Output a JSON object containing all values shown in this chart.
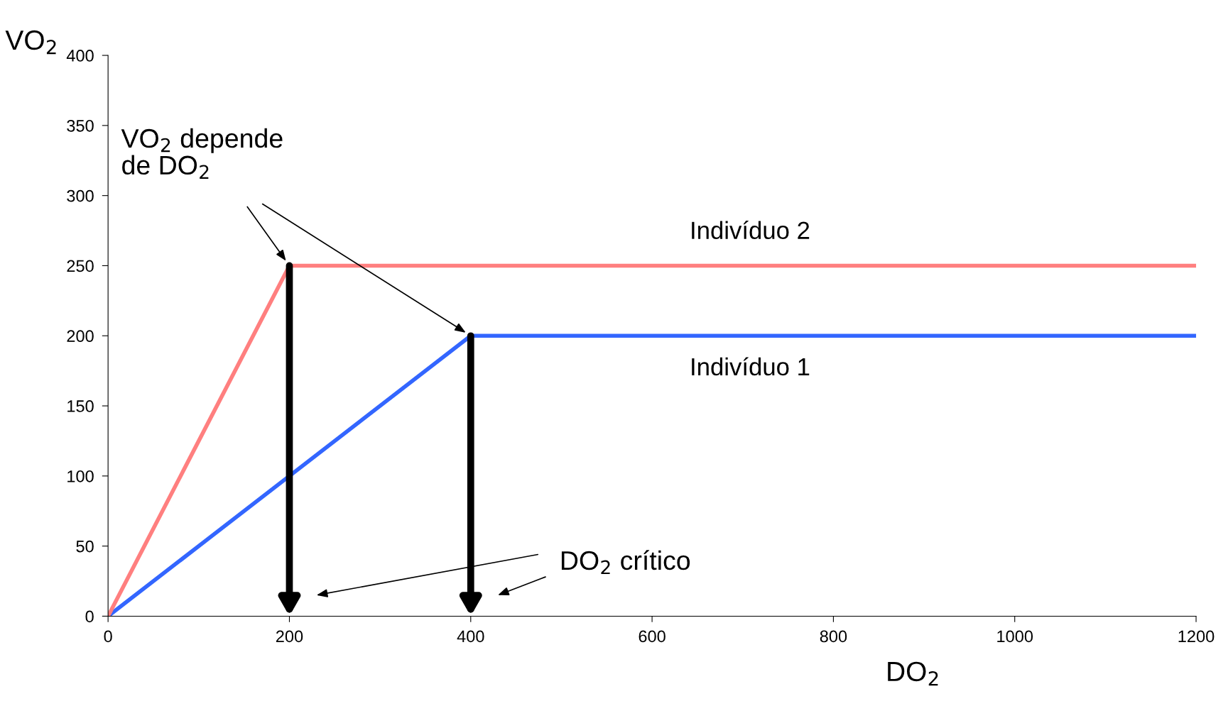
{
  "chart_data": {
    "type": "line",
    "xlabel": "DO$_{2}$",
    "ylabel": "VO$_{2}$",
    "series": [
      {
        "name": "Indivíduo 1",
        "color": "#3366ff",
        "x": [
          0,
          400,
          1200
        ],
        "values": [
          0,
          200,
          200
        ]
      },
      {
        "name": "Indivíduo 2",
        "color": "#ff7f7f",
        "x": [
          0,
          200,
          1200
        ],
        "values": [
          0,
          250,
          250
        ]
      }
    ],
    "xlim": [
      0,
      1200
    ],
    "xticks": [
      0,
      200,
      400,
      600,
      800,
      1000,
      1200
    ],
    "ylim": [
      0,
      400
    ],
    "yticks": [
      0,
      50,
      100,
      150,
      200,
      250,
      300,
      350,
      400
    ],
    "grid": false,
    "marker": "none",
    "line_style": "solid",
    "annotations": [
      "VO$_{2}$ depende\nde DO$_{2}$",
      "DO$_{2}$ crítico"
    ]
  }
}
